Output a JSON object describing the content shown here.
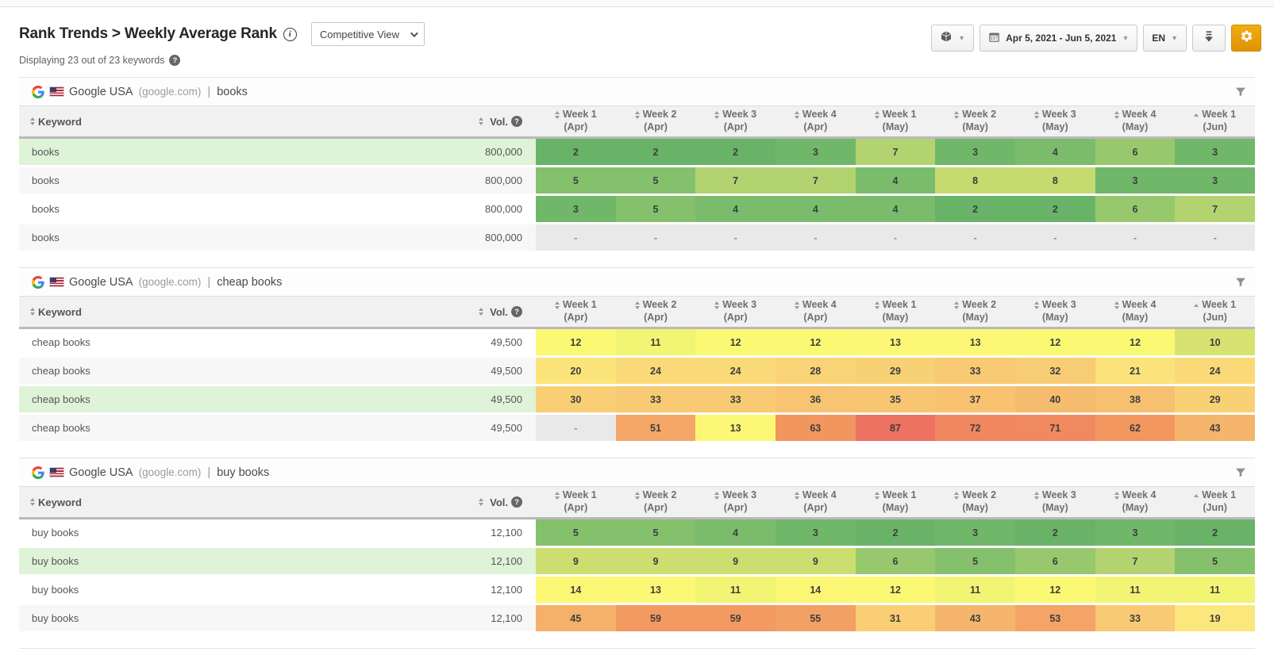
{
  "page": {
    "title": "Rank Trends > Weekly Average Rank",
    "view_mode": "Competitive View",
    "subtitle": "Displaying 23 out of 23 keywords"
  },
  "toolbar": {
    "package_icon": "package-cube",
    "calendar_icon": "calendar",
    "date_range": "Apr 5, 2021 - Jun 5, 2021",
    "language": "EN",
    "download_icon": "download-arrow",
    "settings_icon": "gear",
    "settings_color": "#eda50c"
  },
  "columns": {
    "keyword_label": "Keyword",
    "volume_label": "Vol.",
    "weeks": [
      {
        "label": "Week 1",
        "sublabel": "(Apr)",
        "sort": "both"
      },
      {
        "label": "Week 2",
        "sublabel": "(Apr)",
        "sort": "both"
      },
      {
        "label": "Week 3",
        "sublabel": "(Apr)",
        "sort": "both"
      },
      {
        "label": "Week 4",
        "sublabel": "(Apr)",
        "sort": "both"
      },
      {
        "label": "Week 1",
        "sublabel": "(May)",
        "sort": "both"
      },
      {
        "label": "Week 2",
        "sublabel": "(May)",
        "sort": "both"
      },
      {
        "label": "Week 3",
        "sublabel": "(May)",
        "sort": "both"
      },
      {
        "label": "Week 4",
        "sublabel": "(May)",
        "sort": "both"
      },
      {
        "label": "Week 1",
        "sublabel": "(Jun)",
        "sort": "asc"
      }
    ]
  },
  "heatmap": {
    "empty_bg": "#e9e9e9",
    "empty_text": "#8a8a8a",
    "stops": [
      [
        1,
        "#5fae62"
      ],
      [
        2,
        "#68b368"
      ],
      [
        3,
        "#70b76a"
      ],
      [
        4,
        "#7abc6c"
      ],
      [
        5,
        "#85c06d"
      ],
      [
        6,
        "#98c86e"
      ],
      [
        7,
        "#b2d36f"
      ],
      [
        8,
        "#c5db70"
      ],
      [
        9,
        "#cdde70"
      ],
      [
        10,
        "#d7e371"
      ],
      [
        11,
        "#f2f473"
      ],
      [
        12,
        "#fbf974"
      ],
      [
        14,
        "#fcf675"
      ],
      [
        19,
        "#fbe77b"
      ],
      [
        24,
        "#fada78"
      ],
      [
        29,
        "#f9d175"
      ],
      [
        33,
        "#f8ca73"
      ],
      [
        36,
        "#f8c471"
      ],
      [
        40,
        "#f6bc6e"
      ],
      [
        45,
        "#f5b16a"
      ],
      [
        51,
        "#f4a767"
      ],
      [
        55,
        "#f3a064"
      ],
      [
        59,
        "#f29a61"
      ],
      [
        63,
        "#f29660"
      ],
      [
        72,
        "#f0875f"
      ],
      [
        87,
        "#ee7261"
      ]
    ]
  },
  "colors": {
    "row_highlight": "#def3d7",
    "row_alt": "#f7f7f7"
  },
  "tables": [
    {
      "search_engine": "Google USA",
      "domain": "(google.com)",
      "separator": "|",
      "group_keyword": "books",
      "rows": [
        {
          "keyword": "books",
          "volume": "800,000",
          "highlight": true,
          "values": [
            2,
            2,
            2,
            3,
            7,
            3,
            4,
            6,
            3
          ]
        },
        {
          "keyword": "books",
          "volume": "800,000",
          "highlight": false,
          "values": [
            5,
            5,
            7,
            7,
            4,
            8,
            8,
            3,
            3
          ]
        },
        {
          "keyword": "books",
          "volume": "800,000",
          "highlight": false,
          "values": [
            3,
            5,
            4,
            4,
            4,
            2,
            2,
            6,
            7
          ]
        },
        {
          "keyword": "books",
          "volume": "800,000",
          "highlight": false,
          "values": [
            "-",
            "-",
            "-",
            "-",
            "-",
            "-",
            "-",
            "-",
            "-"
          ]
        }
      ]
    },
    {
      "search_engine": "Google USA",
      "domain": "(google.com)",
      "separator": "|",
      "group_keyword": "cheap books",
      "rows": [
        {
          "keyword": "cheap books",
          "volume": "49,500",
          "highlight": false,
          "values": [
            12,
            11,
            12,
            12,
            13,
            13,
            12,
            12,
            10
          ]
        },
        {
          "keyword": "cheap books",
          "volume": "49,500",
          "highlight": false,
          "values": [
            20,
            24,
            24,
            28,
            29,
            33,
            32,
            21,
            24
          ]
        },
        {
          "keyword": "cheap books",
          "volume": "49,500",
          "highlight": true,
          "values": [
            30,
            33,
            33,
            36,
            35,
            37,
            40,
            38,
            29
          ]
        },
        {
          "keyword": "cheap books",
          "volume": "49,500",
          "highlight": false,
          "values": [
            "-",
            51,
            13,
            63,
            87,
            72,
            71,
            62,
            43
          ]
        }
      ]
    },
    {
      "search_engine": "Google USA",
      "domain": "(google.com)",
      "separator": "|",
      "group_keyword": "buy books",
      "rows": [
        {
          "keyword": "buy books",
          "volume": "12,100",
          "highlight": false,
          "values": [
            5,
            5,
            4,
            3,
            2,
            3,
            2,
            3,
            2
          ]
        },
        {
          "keyword": "buy books",
          "volume": "12,100",
          "highlight": true,
          "values": [
            9,
            9,
            9,
            9,
            6,
            5,
            6,
            7,
            5
          ]
        },
        {
          "keyword": "buy books",
          "volume": "12,100",
          "highlight": false,
          "values": [
            14,
            13,
            11,
            14,
            12,
            11,
            12,
            11,
            11
          ]
        },
        {
          "keyword": "buy books",
          "volume": "12,100",
          "highlight": false,
          "values": [
            45,
            59,
            59,
            55,
            31,
            43,
            53,
            33,
            19
          ]
        }
      ]
    }
  ]
}
